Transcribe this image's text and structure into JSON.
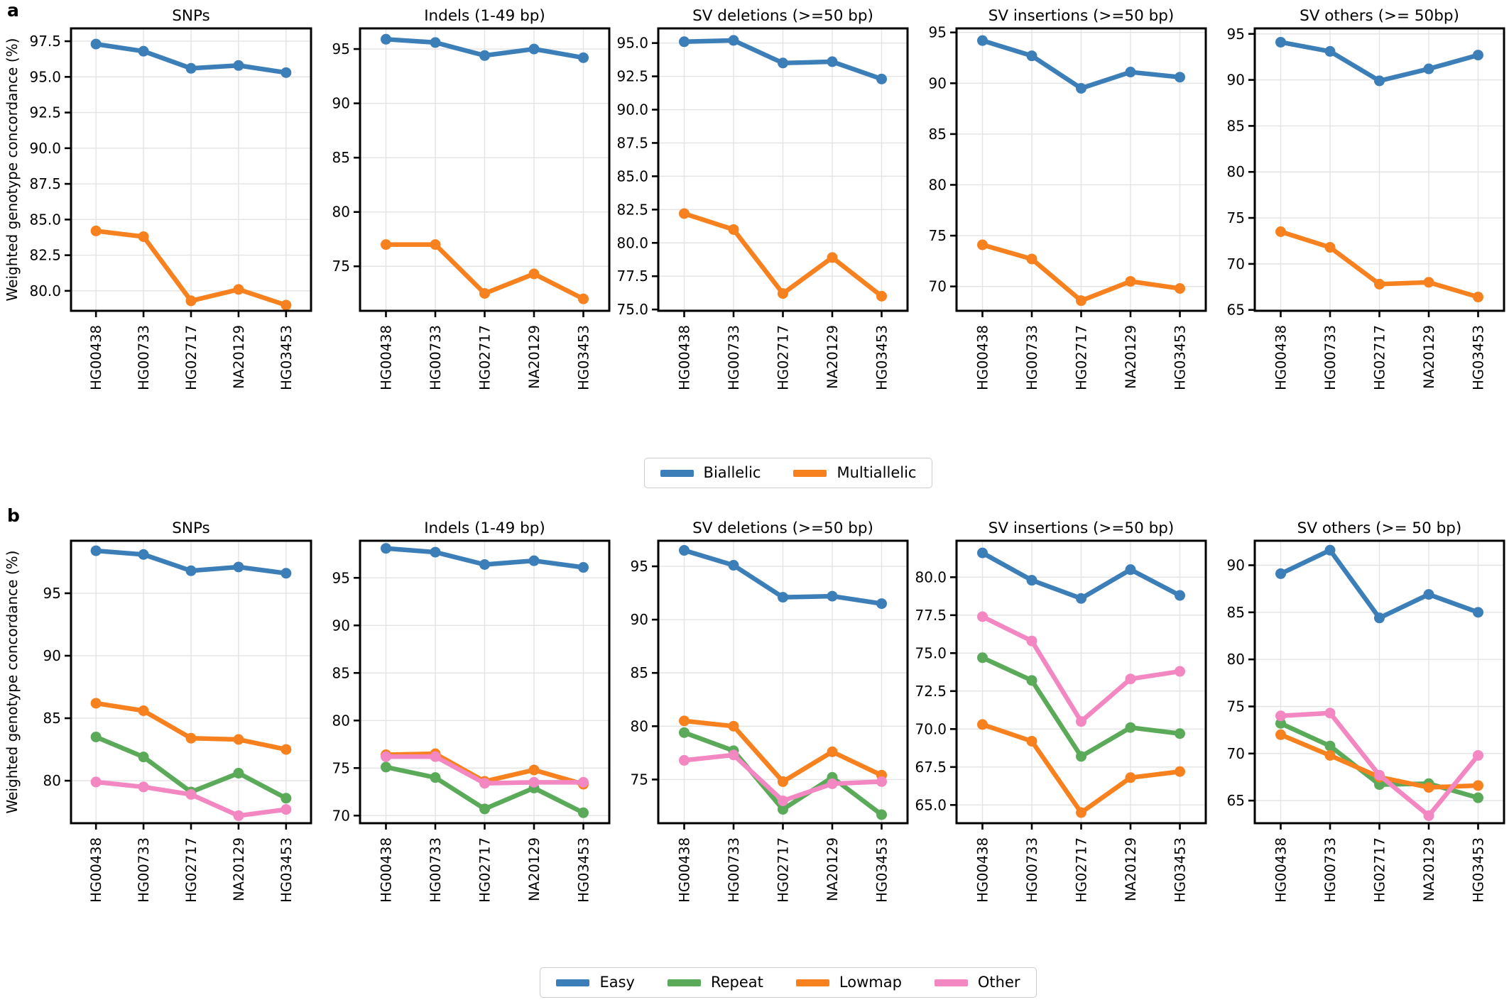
{
  "figure": {
    "rows": [
      {
        "label": "a",
        "ylabel": "Weighted genotype concordance (%)",
        "legend": [
          {
            "label": "Biallelic",
            "color": "#3C7EB8"
          },
          {
            "label": "Multiallelic",
            "color": "#F7811E"
          }
        ],
        "panel_indices": [
          0,
          1,
          2,
          3,
          4
        ]
      },
      {
        "label": "b",
        "ylabel": "Weighted genotype concordance (%)",
        "legend": [
          {
            "label": "Easy",
            "color": "#3C7EB8"
          },
          {
            "label": "Repeat",
            "color": "#5AAA5A"
          },
          {
            "label": "Lowmap",
            "color": "#F7811E"
          },
          {
            "label": "Other",
            "color": "#F287C1"
          }
        ],
        "panel_indices": [
          5,
          6,
          7,
          8,
          9
        ]
      }
    ]
  },
  "chart_data": [
    {
      "type": "line",
      "row": "a",
      "title": "SNPs",
      "ylabel": "Weighted genotype concordance (%)",
      "categories": [
        "HG00438",
        "HG00733",
        "HG02717",
        "NA20129",
        "HG03453"
      ],
      "ylim": [
        78.6,
        98.4
      ],
      "yticks": [
        80,
        82.5,
        85,
        87.5,
        90,
        92.5,
        95,
        97.5
      ],
      "ytick_labels": [
        "80.0",
        "82.5",
        "85.0",
        "87.5",
        "90.0",
        "92.5",
        "95.0",
        "97.5"
      ],
      "grid": true,
      "legend_position": "below-figure",
      "series": [
        {
          "name": "Biallelic",
          "color": "#3C7EB8",
          "values": [
            97.3,
            96.8,
            95.6,
            95.8,
            95.3
          ]
        },
        {
          "name": "Multiallelic",
          "color": "#F7811E",
          "values": [
            84.2,
            83.8,
            79.3,
            80.1,
            79.0
          ]
        }
      ]
    },
    {
      "type": "line",
      "row": "a",
      "title": "Indels (1-49 bp)",
      "categories": [
        "HG00438",
        "HG00733",
        "HG02717",
        "NA20129",
        "HG03453"
      ],
      "ylim": [
        70.9,
        96.9
      ],
      "yticks": [
        75,
        80,
        85,
        90,
        95
      ],
      "ytick_labels": [
        "75",
        "80",
        "85",
        "90",
        "95"
      ],
      "grid": true,
      "series": [
        {
          "name": "Biallelic",
          "color": "#3C7EB8",
          "values": [
            95.9,
            95.6,
            94.4,
            95.0,
            94.2
          ]
        },
        {
          "name": "Multiallelic",
          "color": "#F7811E",
          "values": [
            77.0,
            77.0,
            72.5,
            74.3,
            72.0
          ]
        }
      ]
    },
    {
      "type": "line",
      "row": "a",
      "title": "SV deletions (>=50 bp)",
      "categories": [
        "HG00438",
        "HG00733",
        "HG02717",
        "NA20129",
        "HG03453"
      ],
      "ylim": [
        74.9,
        96.1
      ],
      "yticks": [
        75,
        77.5,
        80,
        82.5,
        85,
        87.5,
        90,
        92.5,
        95
      ],
      "ytick_labels": [
        "75.0",
        "77.5",
        "80.0",
        "82.5",
        "85.0",
        "87.5",
        "90.0",
        "92.5",
        "95.0"
      ],
      "grid": true,
      "series": [
        {
          "name": "Biallelic",
          "color": "#3C7EB8",
          "values": [
            95.1,
            95.2,
            93.5,
            93.6,
            92.3
          ]
        },
        {
          "name": "Multiallelic",
          "color": "#F7811E",
          "values": [
            82.2,
            81.0,
            76.2,
            78.9,
            76.0
          ]
        }
      ]
    },
    {
      "type": "line",
      "row": "a",
      "title": "SV insertions (>=50 bp)",
      "categories": [
        "HG00438",
        "HG00733",
        "HG02717",
        "NA20129",
        "HG03453"
      ],
      "ylim": [
        67.6,
        95.4
      ],
      "yticks": [
        70,
        75,
        80,
        85,
        90,
        95
      ],
      "ytick_labels": [
        "70",
        "75",
        "80",
        "85",
        "90",
        "95"
      ],
      "grid": true,
      "series": [
        {
          "name": "Biallelic",
          "color": "#3C7EB8",
          "values": [
            94.2,
            92.7,
            89.5,
            91.1,
            90.6
          ]
        },
        {
          "name": "Multiallelic",
          "color": "#F7811E",
          "values": [
            74.1,
            72.7,
            68.6,
            70.5,
            69.8
          ]
        }
      ]
    },
    {
      "type": "line",
      "row": "a",
      "title": "SV others (>= 50bp)",
      "categories": [
        "HG00438",
        "HG00733",
        "HG02717",
        "NA20129",
        "HG03453"
      ],
      "ylim": [
        64.9,
        95.6
      ],
      "yticks": [
        65,
        70,
        75,
        80,
        85,
        90,
        95
      ],
      "ytick_labels": [
        "65",
        "70",
        "75",
        "80",
        "85",
        "90",
        "95"
      ],
      "grid": true,
      "series": [
        {
          "name": "Biallelic",
          "color": "#3C7EB8",
          "values": [
            94.1,
            93.1,
            89.9,
            91.2,
            92.7
          ]
        },
        {
          "name": "Multiallelic",
          "color": "#F7811E",
          "values": [
            73.5,
            71.8,
            67.8,
            68.0,
            66.4
          ]
        }
      ]
    },
    {
      "type": "line",
      "row": "b",
      "title": "SNPs",
      "ylabel": "Weighted genotype concordance (%)",
      "categories": [
        "HG00438",
        "HG00733",
        "HG02717",
        "NA20129",
        "HG03453"
      ],
      "ylim": [
        76.6,
        99.2
      ],
      "yticks": [
        80,
        85,
        90,
        95
      ],
      "ytick_labels": [
        "80",
        "85",
        "90",
        "95"
      ],
      "grid": true,
      "series": [
        {
          "name": "Easy",
          "color": "#3C7EB8",
          "values": [
            98.4,
            98.1,
            96.8,
            97.1,
            96.6
          ]
        },
        {
          "name": "Repeat",
          "color": "#5AAA5A",
          "values": [
            83.5,
            81.9,
            79.1,
            80.6,
            78.6
          ]
        },
        {
          "name": "Lowmap",
          "color": "#F7811E",
          "values": [
            86.2,
            85.6,
            83.4,
            83.3,
            82.5
          ]
        },
        {
          "name": "Other",
          "color": "#F287C1",
          "values": [
            79.9,
            79.5,
            78.9,
            77.2,
            77.7
          ]
        }
      ]
    },
    {
      "type": "line",
      "row": "b",
      "title": "Indels (1-49 bp)",
      "categories": [
        "HG00438",
        "HG00733",
        "HG02717",
        "NA20129",
        "HG03453"
      ],
      "ylim": [
        69.2,
        98.9
      ],
      "yticks": [
        70,
        75,
        80,
        85,
        90,
        95
      ],
      "ytick_labels": [
        "70",
        "75",
        "80",
        "85",
        "90",
        "95"
      ],
      "grid": true,
      "series": [
        {
          "name": "Easy",
          "color": "#3C7EB8",
          "values": [
            98.1,
            97.7,
            96.4,
            96.8,
            96.1
          ]
        },
        {
          "name": "Repeat",
          "color": "#5AAA5A",
          "values": [
            75.1,
            74.0,
            70.7,
            72.9,
            70.3
          ]
        },
        {
          "name": "Lowmap",
          "color": "#F7811E",
          "values": [
            76.4,
            76.5,
            73.6,
            74.8,
            73.3
          ]
        },
        {
          "name": "Other",
          "color": "#F287C1",
          "values": [
            76.2,
            76.2,
            73.4,
            73.5,
            73.5
          ]
        }
      ]
    },
    {
      "type": "line",
      "row": "b",
      "title": "SV deletions (>=50 bp)",
      "categories": [
        "HG00438",
        "HG00733",
        "HG02717",
        "NA20129",
        "HG03453"
      ],
      "ylim": [
        70.9,
        97.4
      ],
      "yticks": [
        75,
        80,
        85,
        90,
        95
      ],
      "ytick_labels": [
        "75",
        "80",
        "85",
        "90",
        "95"
      ],
      "grid": true,
      "series": [
        {
          "name": "Easy",
          "color": "#3C7EB8",
          "values": [
            96.5,
            95.1,
            92.1,
            92.2,
            91.5
          ]
        },
        {
          "name": "Repeat",
          "color": "#5AAA5A",
          "values": [
            79.4,
            77.7,
            72.2,
            75.2,
            71.7
          ]
        },
        {
          "name": "Lowmap",
          "color": "#F7811E",
          "values": [
            80.5,
            80.0,
            74.8,
            77.6,
            75.4
          ]
        },
        {
          "name": "Other",
          "color": "#F287C1",
          "values": [
            76.8,
            77.3,
            73.0,
            74.6,
            74.8
          ]
        }
      ]
    },
    {
      "type": "line",
      "row": "b",
      "title": "SV insertions (>=50 bp)",
      "categories": [
        "HG00438",
        "HG00733",
        "HG02717",
        "NA20129",
        "HG03453"
      ],
      "ylim": [
        63.8,
        82.4
      ],
      "yticks": [
        65,
        67.5,
        70,
        72.5,
        75,
        77.5,
        80
      ],
      "ytick_labels": [
        "65.0",
        "67.5",
        "70.0",
        "72.5",
        "75.0",
        "77.5",
        "80.0"
      ],
      "grid": true,
      "series": [
        {
          "name": "Easy",
          "color": "#3C7EB8",
          "values": [
            81.6,
            79.8,
            78.6,
            80.5,
            78.8
          ]
        },
        {
          "name": "Repeat",
          "color": "#5AAA5A",
          "values": [
            74.7,
            73.2,
            68.2,
            70.1,
            69.7
          ]
        },
        {
          "name": "Lowmap",
          "color": "#F7811E",
          "values": [
            70.3,
            69.2,
            64.5,
            66.8,
            67.2
          ]
        },
        {
          "name": "Other",
          "color": "#F287C1",
          "values": [
            77.4,
            75.8,
            70.5,
            73.3,
            73.8
          ]
        }
      ]
    },
    {
      "type": "line",
      "row": "b",
      "title": "SV others (>= 50 bp)",
      "categories": [
        "HG00438",
        "HG00733",
        "HG02717",
        "NA20129",
        "HG03453"
      ],
      "ylim": [
        62.6,
        92.6
      ],
      "yticks": [
        65,
        70,
        75,
        80,
        85,
        90
      ],
      "ytick_labels": [
        "65",
        "70",
        "75",
        "80",
        "85",
        "90"
      ],
      "grid": true,
      "series": [
        {
          "name": "Easy",
          "color": "#3C7EB8",
          "values": [
            89.1,
            91.6,
            84.4,
            86.9,
            85.0
          ]
        },
        {
          "name": "Repeat",
          "color": "#5AAA5A",
          "values": [
            73.2,
            70.8,
            66.7,
            66.8,
            65.3
          ]
        },
        {
          "name": "Lowmap",
          "color": "#F7811E",
          "values": [
            72.0,
            69.8,
            67.5,
            66.4,
            66.6
          ]
        },
        {
          "name": "Other",
          "color": "#F287C1",
          "values": [
            74.0,
            74.3,
            67.7,
            63.4,
            69.8
          ]
        }
      ]
    }
  ]
}
